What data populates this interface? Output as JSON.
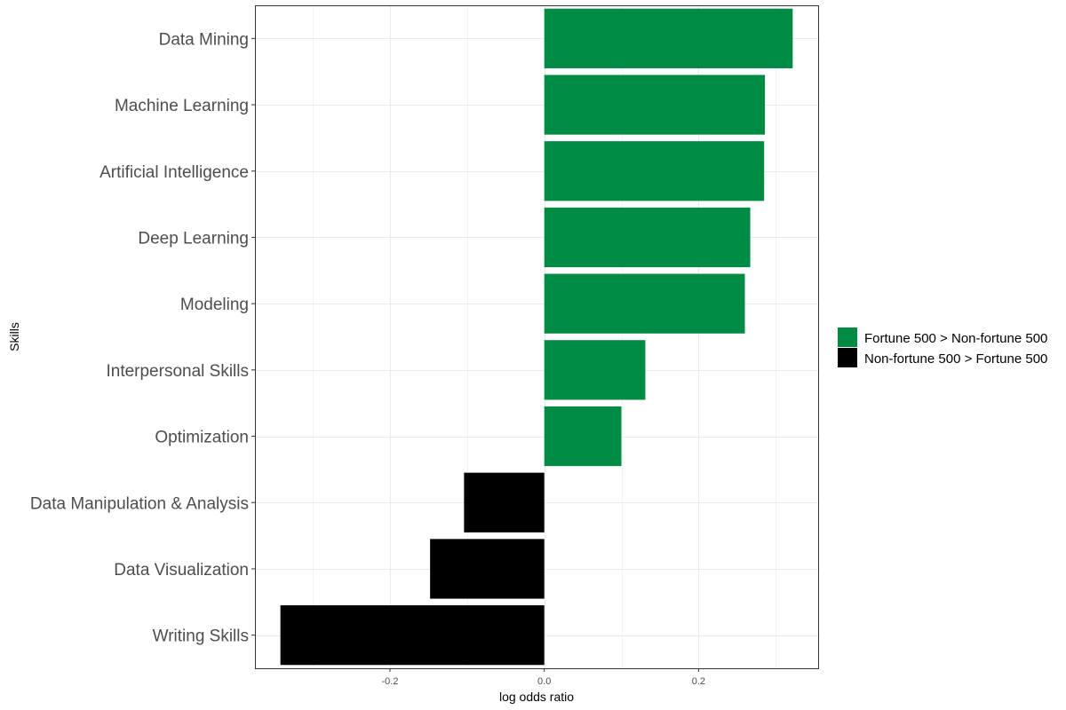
{
  "chart_data": {
    "type": "bar",
    "orientation": "horizontal",
    "xlabel": "log odds ratio",
    "ylabel": "Skills",
    "xlim": [
      -0.375,
      0.355
    ],
    "x_ticks": [
      -0.2,
      0.0,
      0.2
    ],
    "x_tick_labels": [
      "-0.2",
      "0.0",
      "0.2"
    ],
    "grid": true,
    "legend_position": "right",
    "categories": [
      "Data Mining",
      "Machine Learning",
      "Artificial Intelligence",
      "Deep Learning",
      "Modeling",
      "Interpersonal Skills",
      "Optimization",
      "Data Manipulation & Analysis",
      "Data Visualization",
      "Writing Skills"
    ],
    "values": [
      0.322,
      0.286,
      0.285,
      0.267,
      0.26,
      0.131,
      0.1,
      -0.104,
      -0.148,
      -0.342
    ],
    "groups": [
      "Fortune 500 > Non-fortune 500",
      "Fortune 500 > Non-fortune 500",
      "Fortune 500 > Non-fortune 500",
      "Fortune 500 > Non-fortune 500",
      "Fortune 500 > Non-fortune 500",
      "Fortune 500 > Non-fortune 500",
      "Fortune 500 > Non-fortune 500",
      "Non-fortune 500 > Fortune 500",
      "Non-fortune 500 > Fortune 500",
      "Non-fortune 500 > Fortune 500"
    ],
    "legend": [
      {
        "label": "Fortune 500 > Non-fortune 500",
        "color": "#008b45"
      },
      {
        "label": "Non-fortune 500 > Fortune 500",
        "color": "#000000"
      }
    ]
  }
}
